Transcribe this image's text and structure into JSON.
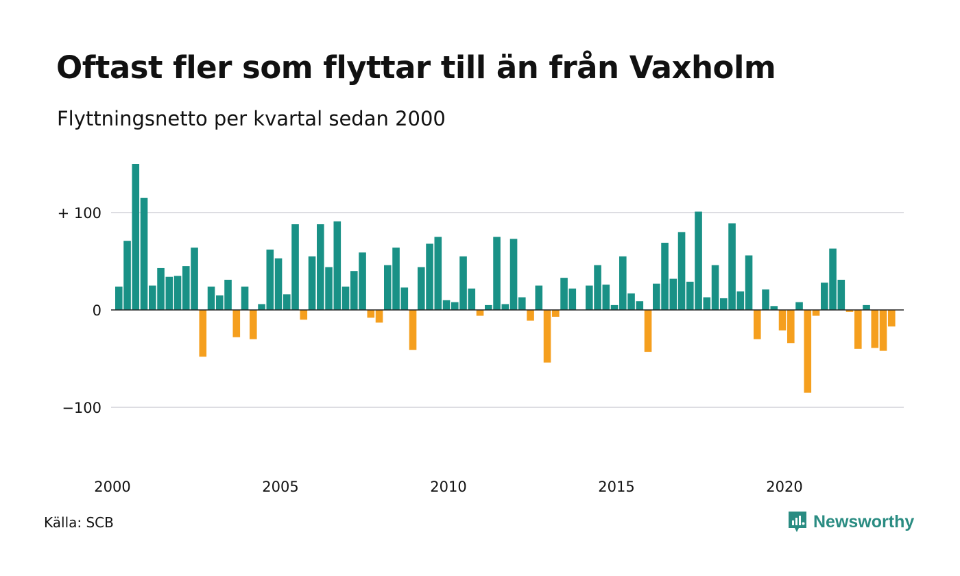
{
  "title": "Oftast fler som flyttar till än från Vaxholm",
  "subtitle": "Flyttningsnetto per kvartal sedan 2000",
  "source": "Källa: SCB",
  "brand": {
    "name": "Newsworthy",
    "icon": "newsworthy-logo-icon"
  },
  "colors": {
    "positive": "#199186",
    "negative": "#f59f1e",
    "grid": "#dddde2",
    "zero": "#222222",
    "brand": "#2a8c82"
  },
  "chart_data": {
    "type": "bar",
    "x_axis": {
      "start_year": 2000,
      "tick_labels": [
        "2000",
        "2005",
        "2010",
        "2015",
        "2020"
      ]
    },
    "y_axis": {
      "ylim": [
        -165,
        155
      ],
      "ticks": [
        100,
        0,
        -100
      ],
      "tick_labels": [
        "+ 100",
        "0",
        "−100"
      ]
    },
    "grid": true,
    "series": [
      {
        "values": [
          24,
          71,
          150,
          115,
          25,
          43,
          34,
          35,
          45,
          64,
          -48,
          24,
          15,
          31,
          -28,
          24,
          -30,
          6,
          62,
          53,
          16,
          88,
          -10,
          55,
          88,
          44,
          91,
          24,
          40,
          59,
          -8,
          -13,
          46,
          64,
          23,
          -41,
          44,
          68,
          75,
          10,
          8,
          55,
          22,
          -6,
          5,
          75,
          6,
          73,
          13,
          -11,
          25,
          -54,
          -7,
          33,
          22,
          0,
          25,
          46,
          26,
          5,
          55,
          17,
          9,
          -43,
          27,
          69,
          32,
          80,
          29,
          101,
          13,
          46,
          12,
          89,
          19,
          56,
          -30,
          21,
          4,
          -21,
          -34,
          8,
          -85,
          -6,
          28,
          63,
          31,
          -2,
          -40,
          5,
          -39,
          -42,
          -17
        ]
      }
    ]
  }
}
